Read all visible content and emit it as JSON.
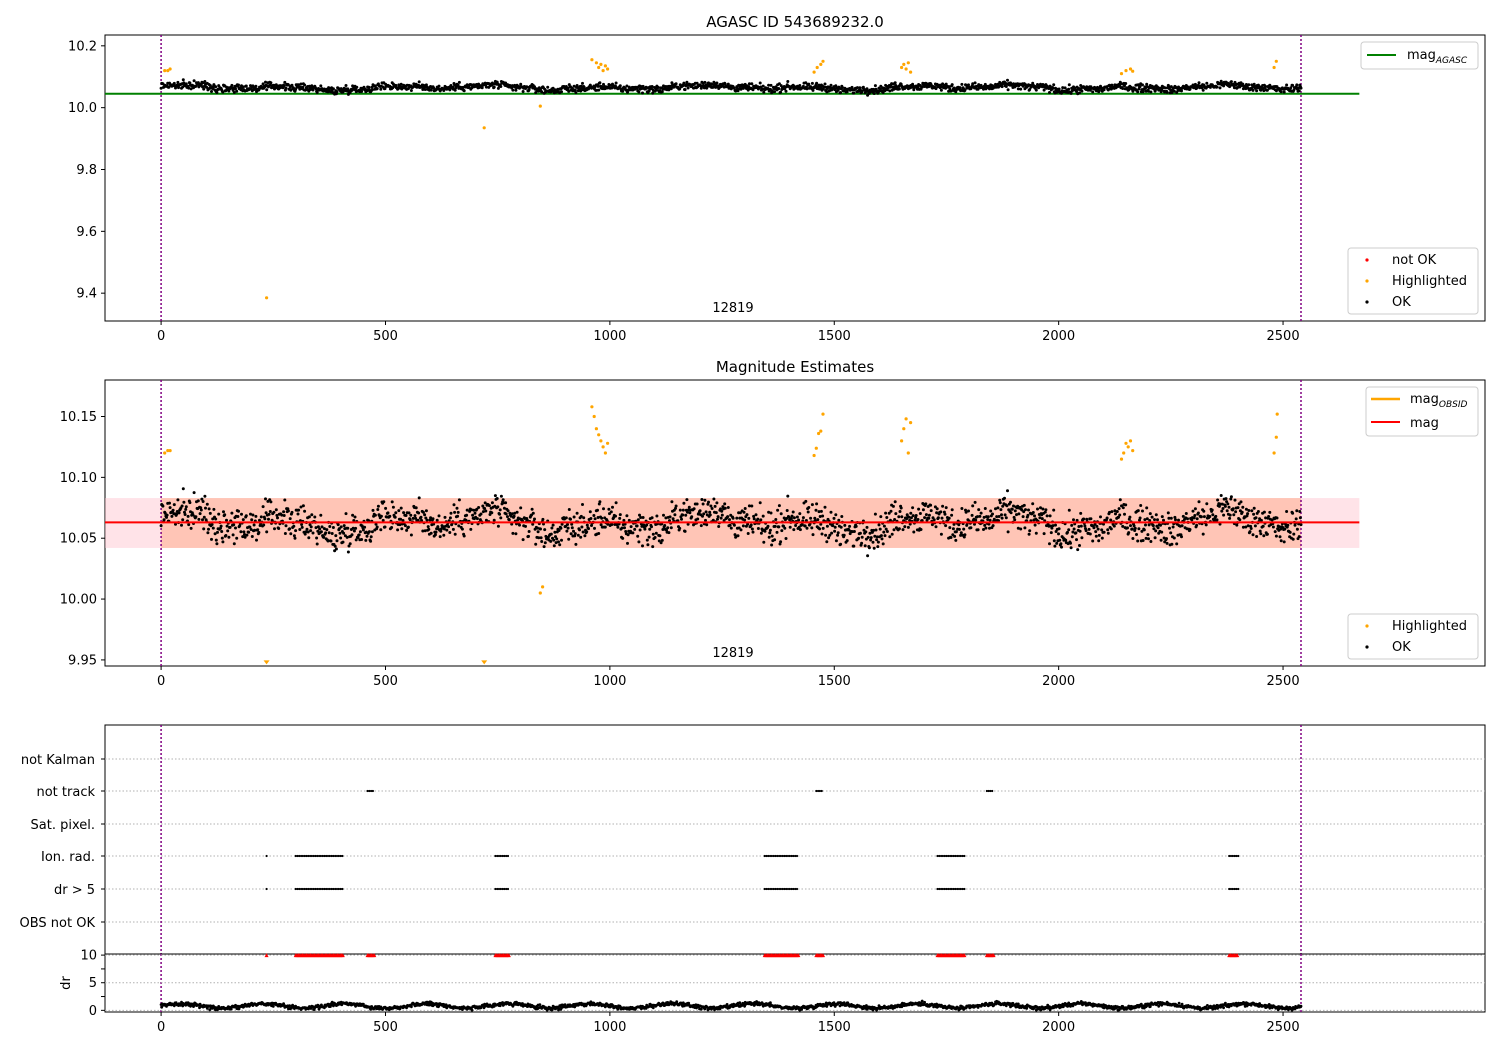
{
  "colors": {
    "ok": "#000000",
    "highlighted": "#ffa500",
    "not_ok": "#ff0000",
    "mag_agasc_line": "#008000",
    "mag_obsid_line": "#ffa500",
    "mag_line": "#ff0000",
    "band_outer": "#ffc0cb",
    "band_inner": "#ffa07a",
    "obs_boundary": "#800080",
    "grid": "#b0b0b0"
  },
  "chart_data": [
    {
      "type": "scatter",
      "title": "AGASC ID 543689232.0",
      "xlabel": "",
      "ylabel": "",
      "xlim": [
        -125,
        2950
      ],
      "ylim": [
        9.31,
        10.235
      ],
      "xticks": [
        0,
        500,
        1000,
        1500,
        2000,
        2500
      ],
      "yticks": [
        9.4,
        9.6,
        9.8,
        10.0,
        10.2
      ],
      "xtick_labels": [
        "0",
        "500",
        "1000",
        "1500",
        "2000",
        "2500"
      ],
      "ytick_labels": [
        "9.4",
        "9.6",
        "9.8",
        "10.0",
        "10.2"
      ],
      "obs_boundaries": [
        0,
        2540
      ],
      "obsid_label": "12819",
      "obsid_label_x": 1270,
      "reference_lines": [
        {
          "name": "mag_AGASC",
          "label": "mag",
          "label_sub": "AGASC",
          "y": 10.045,
          "x_range": [
            -125,
            2670
          ]
        }
      ],
      "series": [
        {
          "name": "OK",
          "color": "#000000",
          "n": 1900,
          "x_range": [
            0,
            2540
          ],
          "y_base": 10.065,
          "y_jitter": 0.02
        },
        {
          "name": "Highlighted",
          "color": "#ffa500",
          "x": [
            8,
            15,
            20,
            235,
            720,
            845,
            960,
            970,
            975,
            980,
            985,
            990,
            995,
            1455,
            1462,
            1470,
            1475,
            1650,
            1655,
            1660,
            1665,
            1670,
            2140,
            2150,
            2160,
            2165,
            2480,
            2485
          ],
          "y": [
            10.12,
            10.12,
            10.125,
            9.385,
            9.935,
            10.005,
            10.155,
            10.145,
            10.13,
            10.14,
            10.12,
            10.135,
            10.125,
            10.115,
            10.13,
            10.14,
            10.15,
            10.13,
            10.14,
            10.125,
            10.145,
            10.115,
            10.11,
            10.12,
            10.125,
            10.118,
            10.13,
            10.15
          ]
        },
        {
          "name": "not OK",
          "color": "#ff0000",
          "x": [],
          "y": []
        }
      ],
      "legend_top": "top-right",
      "legend_bottom": "bottom-right",
      "legend": {
        "line_label": "mag",
        "line_label_sub": "AGASC",
        "not_ok": "not OK",
        "highlighted": "Highlighted",
        "ok": "OK"
      }
    },
    {
      "type": "scatter",
      "title": "Magnitude Estimates",
      "xlabel": "",
      "ylabel": "",
      "xlim": [
        -125,
        2950
      ],
      "ylim": [
        9.945,
        10.18
      ],
      "xticks": [
        0,
        500,
        1000,
        1500,
        2000,
        2500
      ],
      "yticks": [
        9.95,
        10.0,
        10.05,
        10.1,
        10.15
      ],
      "xtick_labels": [
        "0",
        "500",
        "1000",
        "1500",
        "2000",
        "2500"
      ],
      "ytick_labels": [
        "9.95",
        "10.00",
        "10.05",
        "10.10",
        "10.15"
      ],
      "obs_boundaries": [
        0,
        2540
      ],
      "obsid_label": "12819",
      "obsid_label_x": 1270,
      "mag_line": {
        "y": 10.063,
        "x_range": [
          -125,
          2670
        ]
      },
      "mag_band": {
        "y_range": [
          10.042,
          10.083
        ],
        "x_range": [
          -125,
          2670
        ]
      },
      "mag_obsid_band": {
        "y_range": [
          10.042,
          10.083
        ],
        "x_range": [
          0,
          2540
        ]
      },
      "series": [
        {
          "name": "OK",
          "color": "#000000",
          "n": 1900,
          "x_range": [
            0,
            2540
          ],
          "y_base": 10.063,
          "y_jitter": 0.022
        },
        {
          "name": "Highlighted",
          "color": "#ffa500",
          "x": [
            8,
            15,
            20,
            845,
            850,
            960,
            965,
            970,
            975,
            980,
            985,
            990,
            995,
            1455,
            1460,
            1465,
            1470,
            1475,
            1650,
            1655,
            1660,
            1665,
            1670,
            2140,
            2145,
            2150,
            2155,
            2160,
            2165,
            2480,
            2485,
            2487
          ],
          "y": [
            10.12,
            10.122,
            10.122,
            10.005,
            10.01,
            10.158,
            10.15,
            10.14,
            10.135,
            10.13,
            10.125,
            10.12,
            10.128,
            10.118,
            10.124,
            10.136,
            10.138,
            10.152,
            10.13,
            10.14,
            10.148,
            10.12,
            10.145,
            10.115,
            10.12,
            10.128,
            10.125,
            10.13,
            10.122,
            10.12,
            10.133,
            10.152
          ]
        },
        {
          "name": "Highlighted_below",
          "color": "#ffa500",
          "x": [
            235,
            720
          ],
          "y": [
            9.948,
            9.948
          ]
        }
      ],
      "legend_top": "top-right",
      "legend_bottom": "bottom-right",
      "legend": {
        "line1_label": "mag",
        "line1_label_sub": "OBSID",
        "line2_label": "mag",
        "highlighted": "Highlighted",
        "ok": "OK"
      }
    },
    {
      "type": "scatter",
      "title": "",
      "xlabel": "",
      "ylabel": "",
      "xlim": [
        -125,
        2950
      ],
      "categories": [
        "not Kalman",
        "not track",
        "Sat. pixel.",
        "Ion. rad.",
        "dr > 5",
        "OBS not OK"
      ],
      "obs_boundaries": [
        0,
        2540
      ],
      "flags": {
        "not Kalman": [],
        "not track": [
          [
            460,
            475
          ],
          [
            1460,
            1475
          ],
          [
            1840,
            1855
          ]
        ],
        "Sat. pixel.": [],
        "Ion. rad.": [
          [
            235,
            237
          ],
          [
            300,
            405
          ],
          [
            745,
            775
          ],
          [
            1345,
            1420
          ],
          [
            1730,
            1790
          ],
          [
            2380,
            2400
          ]
        ],
        "dr > 5": [
          [
            235,
            237
          ],
          [
            300,
            405
          ],
          [
            745,
            775
          ],
          [
            1345,
            1420
          ],
          [
            1730,
            1790
          ],
          [
            2380,
            2400
          ]
        ],
        "OBS not OK": []
      }
    },
    {
      "type": "scatter",
      "title": "",
      "xlabel": "",
      "ylabel": "dr",
      "xlim": [
        -125,
        2950
      ],
      "ylim": [
        -0.3,
        10.2
      ],
      "yticks": [
        0,
        5,
        10
      ],
      "ytick_labels": [
        "0",
        "5",
        "10"
      ],
      "xticks": [
        0,
        500,
        1000,
        1500,
        2000,
        2500
      ],
      "xtick_labels": [
        "0",
        "500",
        "1000",
        "1500",
        "2000",
        "2500"
      ],
      "obs_boundaries": [
        0,
        2540
      ],
      "clipped_marker_value": 10,
      "clipped_ranges": [
        [
          235,
          237
        ],
        [
          300,
          405
        ],
        [
          460,
          475
        ],
        [
          745,
          775
        ],
        [
          1345,
          1420
        ],
        [
          1460,
          1475
        ],
        [
          1730,
          1790
        ],
        [
          1840,
          1855
        ],
        [
          2380,
          2400
        ]
      ],
      "series": [
        {
          "name": "dr",
          "color": "#000000",
          "n": 1900,
          "x_range": [
            0,
            2540
          ],
          "y_base": 0.8,
          "y_jitter": 0.35
        }
      ]
    }
  ]
}
